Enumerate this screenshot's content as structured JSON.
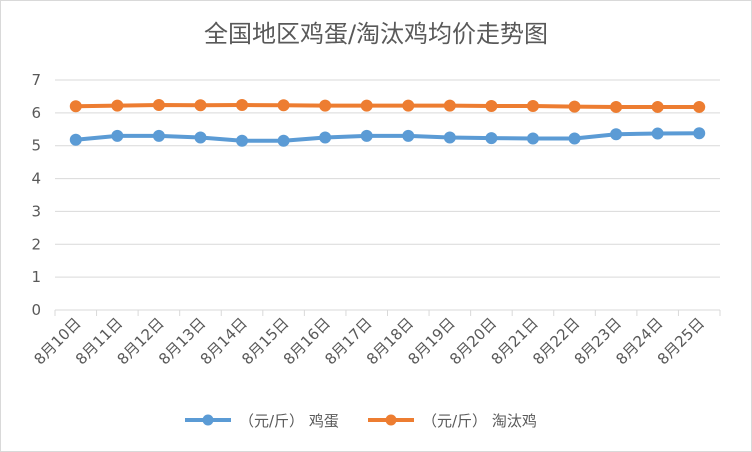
{
  "chart_data": {
    "type": "line",
    "title": "全国地区鸡蛋/淘汰鸡均价走势图",
    "categories": [
      "8月10日",
      "8月11日",
      "8月12日",
      "8月13日",
      "8月14日",
      "8月15日",
      "8月16日",
      "8月17日",
      "8月18日",
      "8月19日",
      "8月20日",
      "8月21日",
      "8月22日",
      "8月23日",
      "8月24日",
      "8月25日"
    ],
    "y_ticks": [
      "0",
      "1",
      "2",
      "3",
      "4",
      "5",
      "6",
      "7"
    ],
    "ylim": [
      0,
      7
    ],
    "grid": true,
    "legend_position": "bottom",
    "series": [
      {
        "name": "（元/斤） 鸡蛋",
        "color": "#5B9BD5",
        "values": [
          5.18,
          5.3,
          5.3,
          5.25,
          5.15,
          5.15,
          5.25,
          5.3,
          5.3,
          5.25,
          5.23,
          5.22,
          5.22,
          5.35,
          5.37,
          5.38
        ]
      },
      {
        "name": "（元/斤） 淘汰鸡",
        "color": "#ED7D31",
        "values": [
          6.2,
          6.22,
          6.24,
          6.23,
          6.24,
          6.23,
          6.22,
          6.22,
          6.22,
          6.22,
          6.21,
          6.21,
          6.19,
          6.18,
          6.18,
          6.18
        ]
      }
    ]
  }
}
